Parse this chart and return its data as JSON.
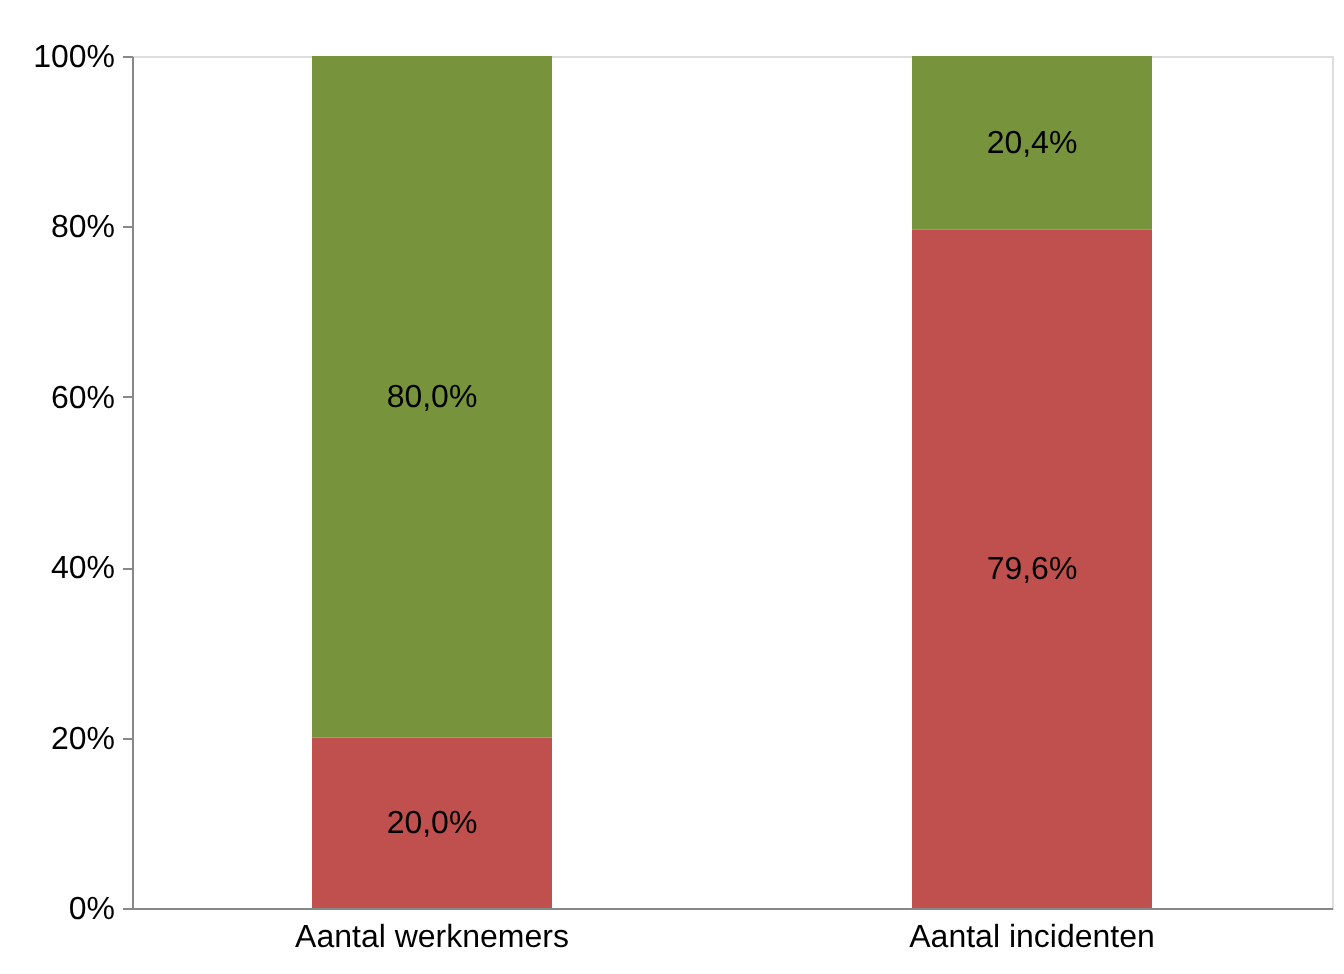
{
  "chart_data": {
    "type": "bar",
    "stacked": true,
    "categories": [
      "Aantal werknemers",
      "Aantal incidenten"
    ],
    "series": [
      {
        "color": "#c0504d",
        "values": [
          20.0,
          79.6
        ],
        "value_labels": [
          "20,0%",
          "79,6%"
        ]
      },
      {
        "color": "#77933c",
        "values": [
          80.0,
          20.4
        ],
        "value_labels": [
          "80,0%",
          "20,4%"
        ]
      }
    ],
    "ylim": [
      0,
      100
    ],
    "yticks": [
      {
        "value": 0,
        "label": "0%"
      },
      {
        "value": 20,
        "label": "20%"
      },
      {
        "value": 40,
        "label": "40%"
      },
      {
        "value": 60,
        "label": "60%"
      },
      {
        "value": 80,
        "label": "80%"
      },
      {
        "value": 100,
        "label": "100%"
      }
    ],
    "grid": false
  }
}
